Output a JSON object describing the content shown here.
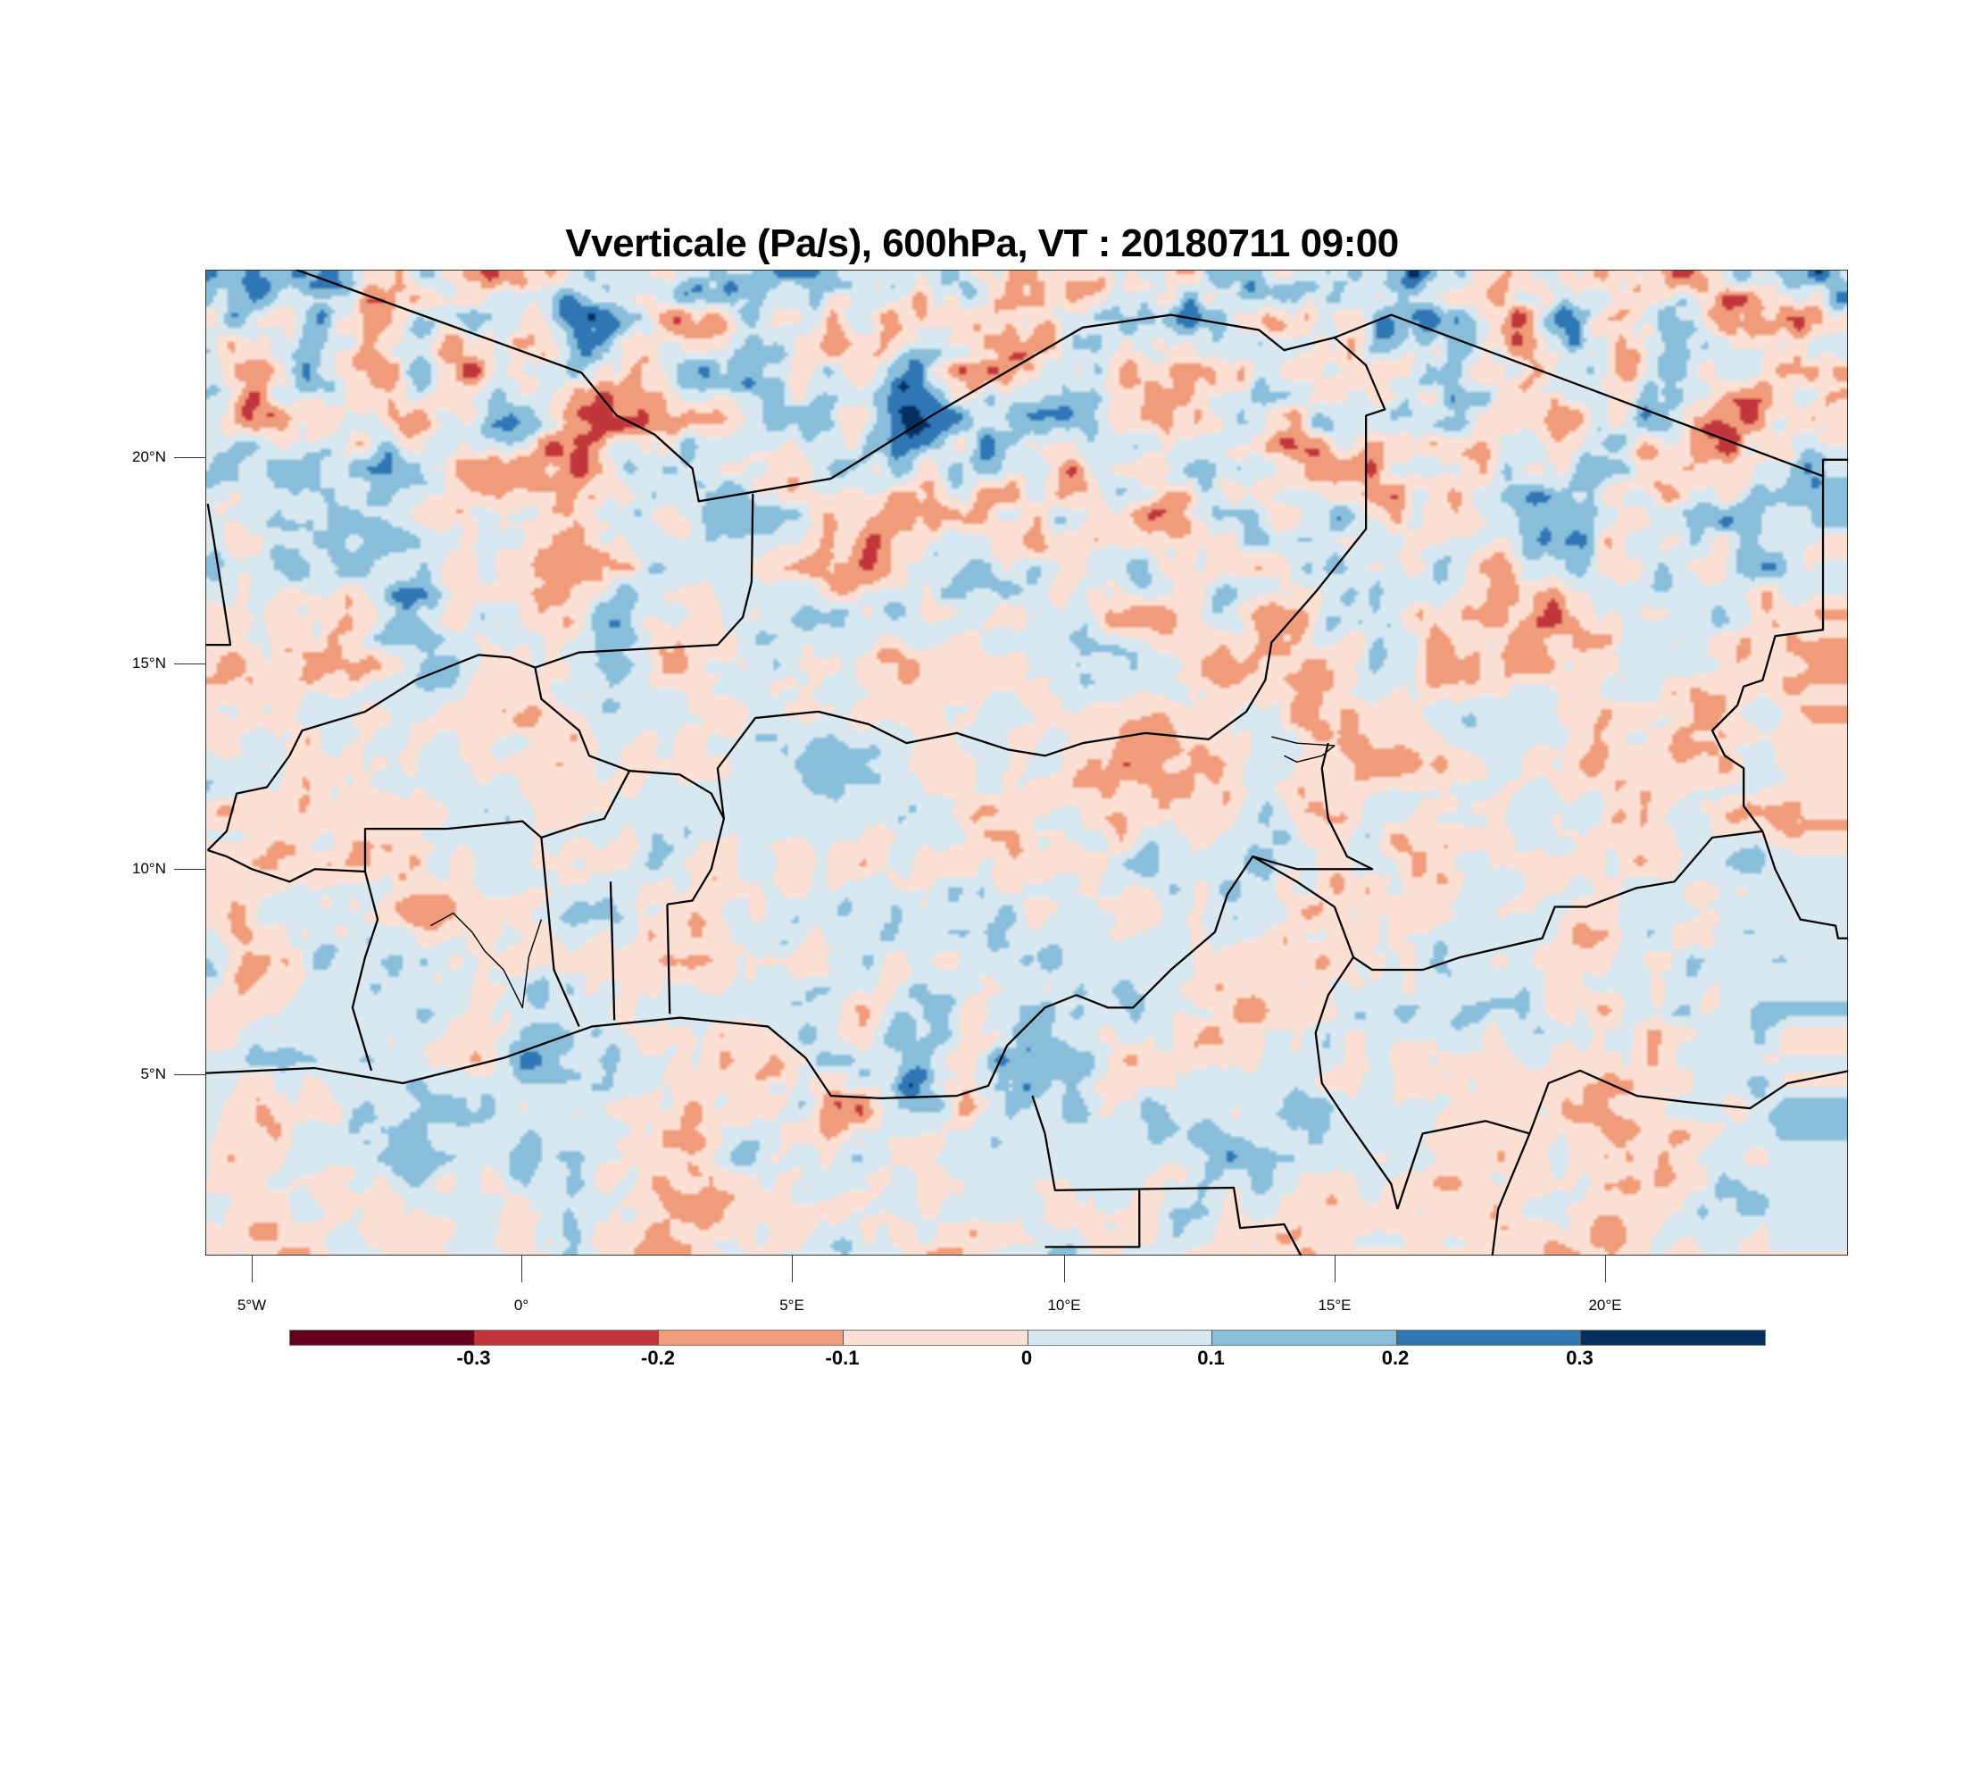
{
  "chart_data": {
    "type": "heatmap",
    "title": "Vverticale (Pa/s), 600hPa, VT : 20180711  09:00",
    "variable": "Vverticale",
    "units": "Pa/s",
    "level": "600hPa",
    "valid_time": "20180711  09:00",
    "xlabel": "",
    "ylabel": "",
    "x_ticks": [
      "5°W",
      "0°",
      "5°E",
      "10°E",
      "15°E",
      "20°E"
    ],
    "x_tick_values": [
      -5,
      0,
      5,
      10,
      15,
      20
    ],
    "y_ticks": [
      "20°N",
      "15°N",
      "10°N",
      "5°N"
    ],
    "y_tick_values": [
      20,
      15,
      10,
      5
    ],
    "xlim": [
      -5.85,
      24.4
    ],
    "ylim": [
      0.6,
      24.6
    ],
    "colorbar": {
      "labels": [
        "-0.3",
        "-0.2",
        "-0.1",
        "0",
        "0.1",
        "0.2",
        "0.3"
      ],
      "levels": [
        -0.3,
        -0.2,
        -0.1,
        0,
        0.1,
        0.2,
        0.3
      ],
      "colors": [
        "#67001f",
        "#c1363a",
        "#f09c7b",
        "#fce0d4",
        "#d7e8f1",
        "#89bedb",
        "#2f76b5",
        "#062e5f"
      ],
      "placement": "bottom"
    }
  }
}
